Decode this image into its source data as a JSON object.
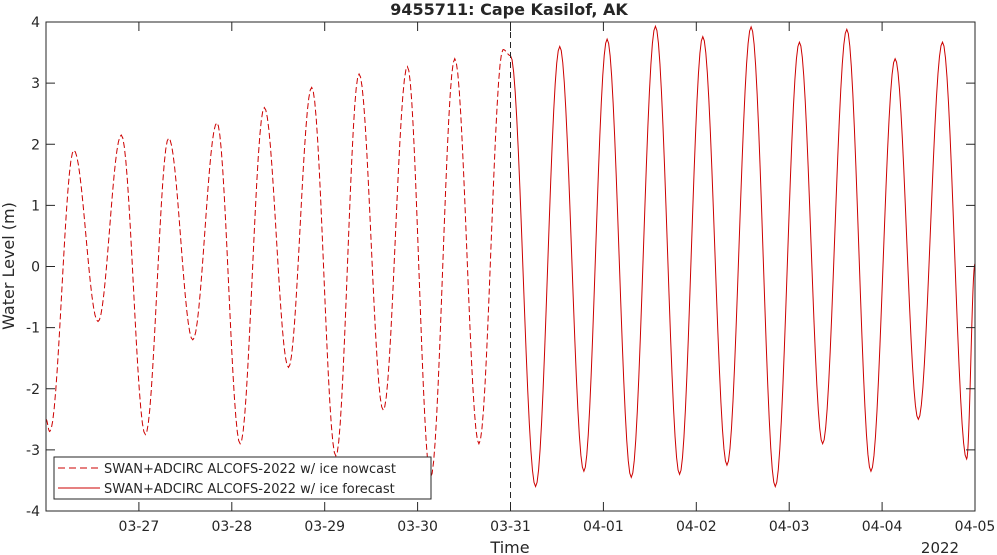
{
  "chart_data": {
    "type": "line",
    "title": "9455711: Cape Kasilof, AK",
    "xlabel": "Time",
    "ylabel": "Water Level (m)",
    "x_unit": "days",
    "x_tick_labels": [
      "03-27",
      "03-28",
      "03-29",
      "03-30",
      "03-31",
      "04-01",
      "04-02",
      "04-03",
      "04-04",
      "04-05"
    ],
    "x_ticks": [
      1,
      2,
      3,
      4,
      5,
      6,
      7,
      8,
      9,
      10
    ],
    "x_secondary_label": "2022",
    "xlim": [
      0,
      10
    ],
    "ylim": [
      -4,
      4
    ],
    "y_ticks": [
      -4,
      -3,
      -2,
      -1,
      0,
      1,
      2,
      3,
      4
    ],
    "y_tick_labels": [
      "-4",
      "-3",
      "-2",
      "-1",
      "0",
      "1",
      "2",
      "3",
      "4"
    ],
    "grid": false,
    "legend_position": "bottom-left",
    "vertical_marker_x": 5,
    "series": [
      {
        "name": "SWAN+ADCIRC ALCOFS-2022 w/ ice nowcast",
        "color": "#cc0000",
        "style": "dashed",
        "extrema": [
          [
            0.0,
            -2.5
          ],
          [
            0.04,
            -2.7
          ],
          [
            0.3,
            1.9
          ],
          [
            0.56,
            -0.9
          ],
          [
            0.81,
            2.15
          ],
          [
            1.07,
            -2.75
          ],
          [
            1.32,
            2.1
          ],
          [
            1.58,
            -1.2
          ],
          [
            1.84,
            2.35
          ],
          [
            2.09,
            -2.9
          ],
          [
            2.35,
            2.6
          ],
          [
            2.61,
            -1.65
          ],
          [
            2.86,
            2.93
          ],
          [
            3.12,
            -3.1
          ],
          [
            3.37,
            3.15
          ],
          [
            3.63,
            -2.35
          ],
          [
            3.89,
            3.27
          ],
          [
            4.14,
            -3.45
          ],
          [
            4.4,
            3.4
          ],
          [
            4.66,
            -2.9
          ],
          [
            4.92,
            3.55
          ],
          [
            5.0,
            3.45
          ]
        ]
      },
      {
        "name": "SWAN+ADCIRC ALCOFS-2022 w/ ice forecast",
        "color": "#cc0000",
        "style": "solid",
        "extrema": [
          [
            5.0,
            3.45
          ],
          [
            5.27,
            -3.6
          ],
          [
            5.53,
            3.6
          ],
          [
            5.79,
            -3.35
          ],
          [
            6.04,
            3.72
          ],
          [
            6.3,
            -3.45
          ],
          [
            6.56,
            3.93
          ],
          [
            6.82,
            -3.4
          ],
          [
            7.07,
            3.76
          ],
          [
            7.33,
            -3.25
          ],
          [
            7.59,
            3.92
          ],
          [
            7.85,
            -3.6
          ],
          [
            8.11,
            3.67
          ],
          [
            8.36,
            -2.9
          ],
          [
            8.62,
            3.88
          ],
          [
            8.88,
            -3.35
          ],
          [
            9.14,
            3.4
          ],
          [
            9.39,
            -2.5
          ],
          [
            9.65,
            3.67
          ],
          [
            9.91,
            -3.15
          ],
          [
            10.0,
            0.05
          ]
        ]
      }
    ]
  }
}
